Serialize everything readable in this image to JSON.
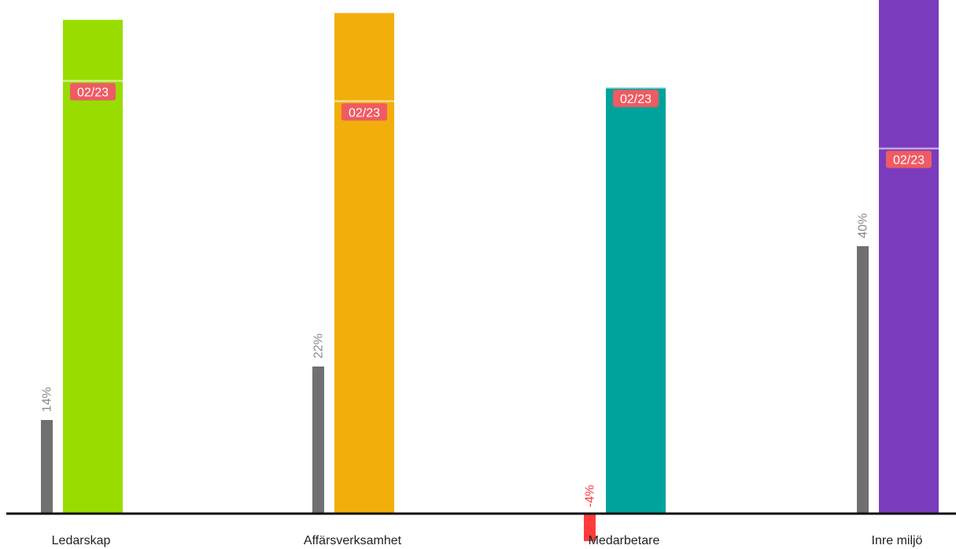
{
  "chart_data": {
    "type": "bar",
    "title": "",
    "xlabel": "",
    "ylabel": "",
    "categories": [
      "Ledarskap",
      "Affärsverksamhet",
      "Medarbetare",
      "Inre miljö"
    ],
    "series": [
      {
        "values": [
          14,
          22,
          -4,
          40
        ],
        "labels": [
          "14%",
          "22%",
          "-4%",
          "40%"
        ]
      },
      {
        "values": [
          73,
          74,
          63,
          76
        ]
      }
    ],
    "markers": [
      {
        "label": "02/23",
        "values": [
          64,
          61,
          63,
          54
        ]
      }
    ],
    "colors": {
      "change_positive": "#707070",
      "change_negative": "#ff3b3b",
      "change_label_positive": "#8a8a8a",
      "change_label_negative": "#ff3b3b",
      "bars": [
        "#99dd00",
        "#f2ae0b",
        "#00a39c",
        "#7a3bbd"
      ],
      "badge": "#ef5b63",
      "baseline": "#111111"
    }
  }
}
